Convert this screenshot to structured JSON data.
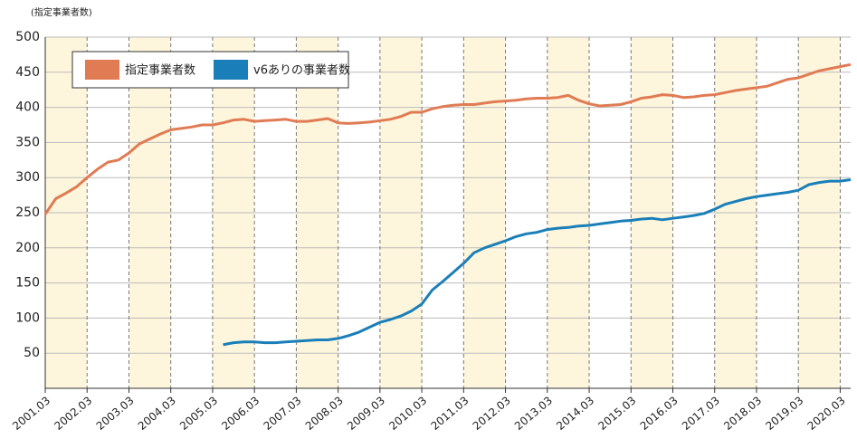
{
  "chart_data": {
    "type": "line",
    "axis_label": "(指定事業者数)",
    "categories": [
      "2001.03",
      null,
      null,
      null,
      "2002.03",
      null,
      null,
      null,
      "2003.03",
      null,
      null,
      null,
      "2004.03",
      null,
      null,
      null,
      "2005.03",
      null,
      null,
      null,
      "2006.03",
      null,
      null,
      null,
      "2007.03",
      null,
      null,
      null,
      "2008.03",
      null,
      null,
      null,
      "2009.03",
      null,
      null,
      null,
      "2010.03",
      null,
      null,
      null,
      "2011.03",
      null,
      null,
      null,
      "2012.03",
      null,
      null,
      null,
      "2013.03",
      null,
      null,
      null,
      "2014.03",
      null,
      null,
      null,
      "2015.03",
      null,
      null,
      null,
      "2016.03",
      null,
      null,
      null,
      "2017.03",
      null,
      null,
      null,
      "2018.03",
      null,
      null,
      null,
      "2019.03",
      null,
      null,
      null,
      "2020.03",
      null
    ],
    "series": [
      {
        "name": "指定事業者数",
        "color": "#e07b54",
        "values": [
          248,
          270,
          278,
          287,
          300,
          312,
          322,
          325,
          335,
          348,
          355,
          362,
          368,
          370,
          372,
          375,
          375,
          378,
          382,
          383,
          380,
          381,
          382,
          383,
          380,
          380,
          382,
          384,
          378,
          377,
          378,
          379,
          381,
          383,
          387,
          393,
          393,
          398,
          401,
          403,
          404,
          404,
          406,
          408,
          409,
          410,
          412,
          413,
          413,
          414,
          417,
          410,
          405,
          402,
          403,
          404,
          408,
          413,
          415,
          418,
          417,
          414,
          415,
          417,
          418,
          421,
          424,
          426,
          428,
          430,
          435,
          440,
          442,
          447,
          452,
          455,
          458,
          461
        ]
      },
      {
        "name": "v6ありの事業者数",
        "color": "#1a7fb8",
        "values": [
          null,
          null,
          null,
          null,
          null,
          null,
          null,
          null,
          null,
          null,
          null,
          null,
          null,
          null,
          null,
          null,
          null,
          62,
          65,
          66,
          66,
          65,
          65,
          66,
          67,
          68,
          69,
          69,
          71,
          75,
          80,
          87,
          94,
          98,
          103,
          110,
          120,
          140,
          152,
          165,
          178,
          193,
          200,
          205,
          210,
          216,
          220,
          222,
          226,
          228,
          229,
          231,
          232,
          234,
          236,
          238,
          239,
          241,
          242,
          240,
          242,
          244,
          246,
          249,
          255,
          262,
          266,
          270,
          273,
          275,
          277,
          279,
          282,
          290,
          293,
          295,
          295,
          297
        ]
      }
    ],
    "ylim": [
      0,
      500
    ],
    "yticks": [
      50,
      100,
      150,
      200,
      250,
      300,
      350,
      400,
      450,
      500
    ],
    "grid": true,
    "legend": "upper left",
    "band_color": "#fdf6dc"
  }
}
